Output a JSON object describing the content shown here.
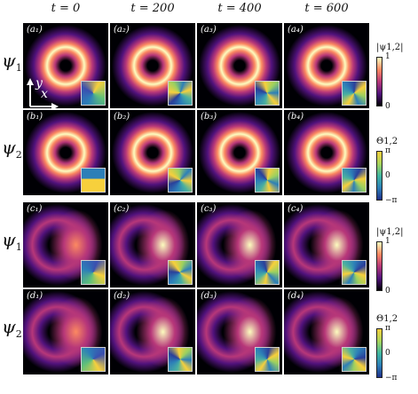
{
  "columns": [
    "t = 0",
    "t = 200",
    "t = 400",
    "t = 600"
  ],
  "rows": [
    {
      "psi": "ψ",
      "sub": "1",
      "letter": "a"
    },
    {
      "psi": "ψ",
      "sub": "2",
      "letter": "b"
    },
    {
      "psi": "ψ",
      "sub": "1",
      "letter": "c"
    },
    {
      "psi": "ψ",
      "sub": "2",
      "letter": "d"
    }
  ],
  "panel_labels": [
    [
      "(a₁)",
      "(a₂)",
      "(a₃)",
      "(a₄)"
    ],
    [
      "(b₁)",
      "(b₂)",
      "(b₃)",
      "(b₄)"
    ],
    [
      "(c₁)",
      "(c₂)",
      "(c₃)",
      "(c₄)"
    ],
    [
      "(d₁)",
      "(d₂)",
      "(d₃)",
      "(d₄)"
    ]
  ],
  "axes": {
    "x": "x",
    "y": "y"
  },
  "colorbars": {
    "amplitude": {
      "title": "|ψ1,2|",
      "ticks": [
        "1",
        "0"
      ]
    },
    "phase": {
      "title": "Θ1,2",
      "ticks": [
        "π",
        "0",
        "−π"
      ]
    }
  },
  "colors": {
    "magma_dark": "#000004",
    "magma_purple": "#51127c",
    "magma_red": "#b73779",
    "magma_orange": "#fc8961",
    "magma_light": "#fcfdbf",
    "phase_blue": "#2c7fb8",
    "phase_yellow": "#f7d03c"
  }
}
